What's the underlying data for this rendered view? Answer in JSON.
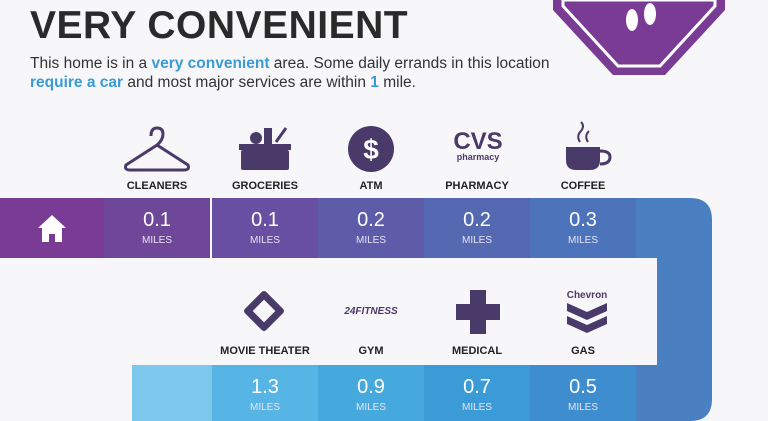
{
  "header": {
    "title": "VERY CONVENIENT",
    "description": [
      "This home is in a ",
      "very convenient",
      " area. Some daily errands in this location ",
      "require a car",
      " and most major services are within ",
      "1",
      " mile."
    ]
  },
  "unit": "MILES",
  "logos": {
    "pharmacy": [
      "CVS",
      "pharmacy"
    ],
    "gym": "24FITNESS",
    "gas": "Chevron"
  },
  "rows": [
    [
      {
        "label": "CLEANERS",
        "distance": 0.1
      },
      {
        "label": "GROCERIES",
        "distance": 0.1
      },
      {
        "label": "ATM",
        "distance": 0.2
      },
      {
        "label": "PHARMACY",
        "distance": 0.2
      },
      {
        "label": "COFFEE",
        "distance": 0.3
      }
    ],
    [
      {
        "label": "MOVIE THEATER",
        "distance": 1.3
      },
      {
        "label": "GYM",
        "distance": 0.9
      },
      {
        "label": "MEDICAL",
        "distance": 0.7
      },
      {
        "label": "GAS",
        "distance": 0.5
      }
    ]
  ]
}
